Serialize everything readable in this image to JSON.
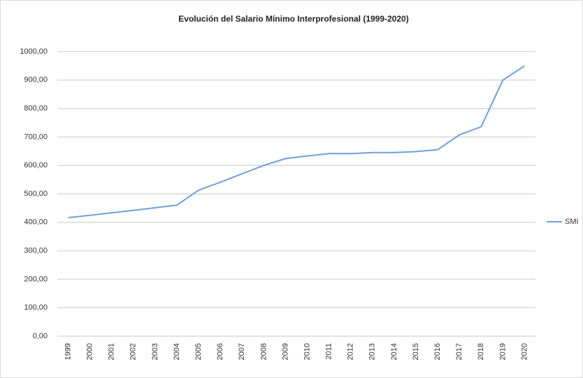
{
  "chart_data": {
    "type": "line",
    "title": "Evolución del Salario Mínimo Interprofesional (1999-2020)",
    "categories": [
      "1999",
      "2000",
      "2001",
      "2002",
      "2003",
      "2004",
      "2005",
      "2006",
      "2007",
      "2008",
      "2009",
      "2010",
      "2011",
      "2012",
      "2013",
      "2014",
      "2015",
      "2016",
      "2017",
      "2018",
      "2019",
      "2020"
    ],
    "series": [
      {
        "name": "SMI",
        "color": "#6f9fd8",
        "values": [
          416.32,
          424.8,
          433.45,
          442.2,
          451.2,
          460.5,
          513.0,
          540.9,
          570.6,
          600.0,
          624.0,
          633.3,
          641.4,
          641.4,
          645.3,
          645.3,
          648.6,
          655.2,
          707.7,
          735.9,
          900.0,
          950.0
        ]
      }
    ],
    "ylim": [
      0,
      1000
    ],
    "yticks": [
      {
        "value": 0,
        "label": "0,00"
      },
      {
        "value": 100,
        "label": "100,00"
      },
      {
        "value": 200,
        "label": "200,00"
      },
      {
        "value": 300,
        "label": "300,00"
      },
      {
        "value": 400,
        "label": "400,00"
      },
      {
        "value": 500,
        "label": "500,00"
      },
      {
        "value": 600,
        "label": "600,00"
      },
      {
        "value": 700,
        "label": "700,00"
      },
      {
        "value": 800,
        "label": "800,00"
      },
      {
        "value": 900,
        "label": "900,00"
      },
      {
        "value": 1000,
        "label": "1000,00"
      }
    ],
    "grid": true,
    "legend": "right"
  }
}
